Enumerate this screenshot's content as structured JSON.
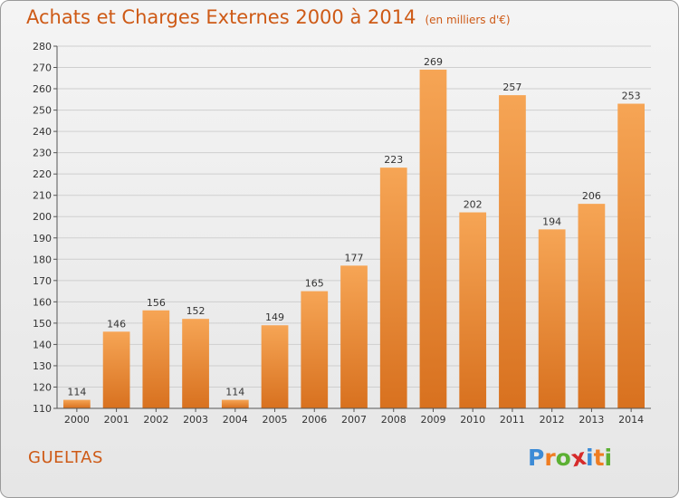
{
  "header": {
    "title": "Achats et Charges Externes 2000 à 2014",
    "subtitle": "(en milliers d'€)"
  },
  "footer": {
    "commune": "GUELTAS",
    "logo_letters": [
      "P",
      "r",
      "o",
      "x",
      "i",
      "t",
      "i"
    ],
    "logo_colors": [
      "#3c8bd6",
      "#ef7d22",
      "#5cb033",
      "#d62b2b",
      "#3c8bd6",
      "#ef7d22",
      "#5cb033"
    ]
  },
  "colors": {
    "bar_top": "#f6a555",
    "bar_bottom": "#d8711f",
    "text_accent": "#ce5a16",
    "grid": "#cfcfcf"
  },
  "chart_data": {
    "type": "bar",
    "title": "Achats et Charges Externes 2000 à 2014",
    "subtitle": "(en milliers d'€)",
    "xlabel": "",
    "ylabel": "",
    "categories": [
      "2000",
      "2001",
      "2002",
      "2003",
      "2004",
      "2005",
      "2006",
      "2007",
      "2008",
      "2009",
      "2010",
      "2011",
      "2012",
      "2013",
      "2014"
    ],
    "values": [
      114,
      146,
      156,
      152,
      114,
      149,
      165,
      177,
      223,
      269,
      202,
      257,
      194,
      206,
      253
    ],
    "ylim": [
      110,
      280
    ],
    "yticks": [
      110,
      120,
      130,
      140,
      150,
      160,
      170,
      180,
      190,
      200,
      210,
      220,
      230,
      240,
      250,
      260,
      270,
      280
    ],
    "grid": true,
    "legend": "none"
  }
}
